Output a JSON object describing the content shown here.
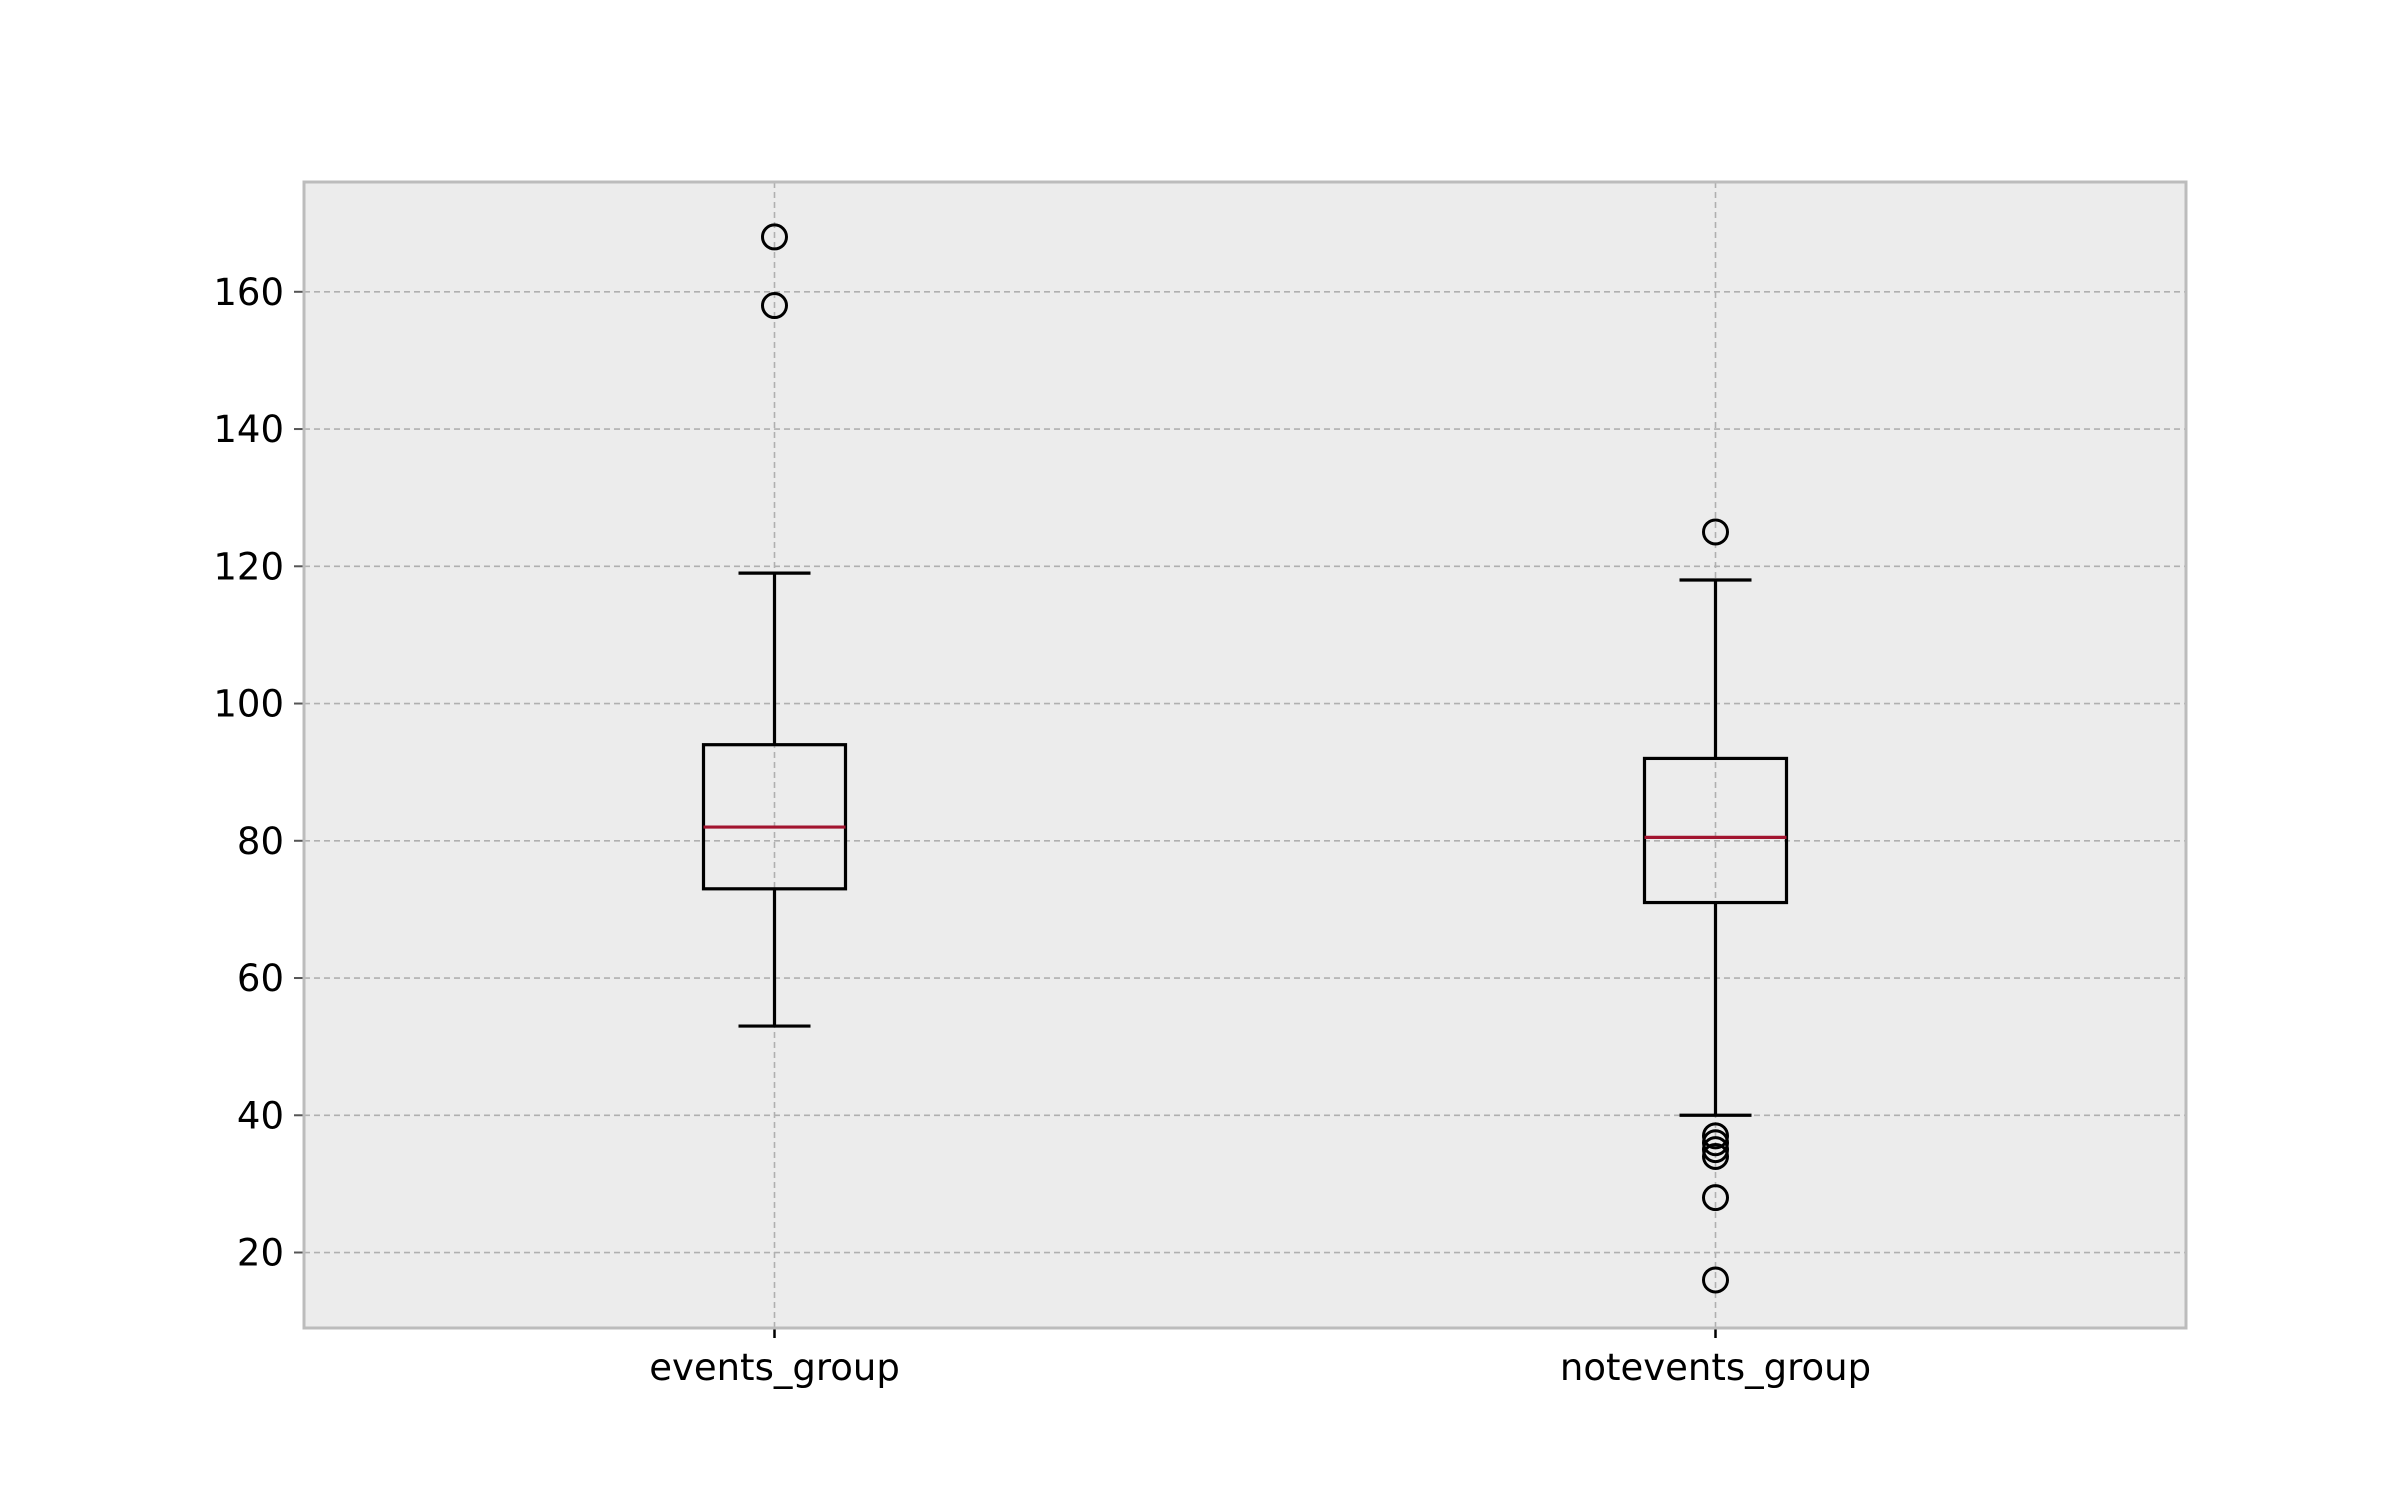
{
  "chart_data": {
    "type": "box",
    "title": "",
    "xlabel": "",
    "ylabel": "",
    "categories": [
      "events_group",
      "notevents_group"
    ],
    "ylim": [
      9,
      176
    ],
    "yticks": [
      20,
      40,
      60,
      80,
      100,
      120,
      140,
      160
    ],
    "grid": true,
    "series": [
      {
        "category": "events_group",
        "whisker_low": 53,
        "q1": 73,
        "median": 82,
        "q3": 94,
        "whisker_high": 119,
        "outliers": [
          158,
          168
        ]
      },
      {
        "category": "notevents_group",
        "whisker_low": 40,
        "q1": 71,
        "median": 80.5,
        "q3": 92,
        "whisker_high": 118,
        "outliers": [
          16,
          28,
          34,
          35,
          36,
          37,
          125
        ]
      }
    ],
    "colors": {
      "background": "#ffffff",
      "plot_area": "#ececec",
      "frame": "#bcbcbc",
      "grid": "#b0b0b0",
      "box": "#000000",
      "median": "#a2142f",
      "text": "#000000"
    }
  }
}
